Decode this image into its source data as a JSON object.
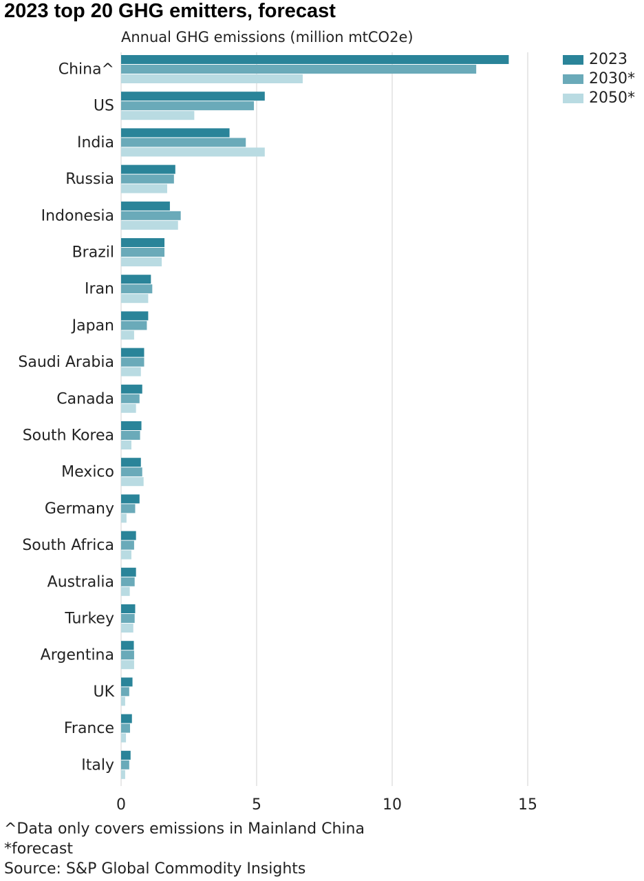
{
  "title": "2023 top 20 GHG emitters, forecast",
  "subtitle": "Annual GHG emissions (million mtCO2e)",
  "footnotes": {
    "china_note": "^Data only covers emissions in Mainland China",
    "forecast_note": "*forecast",
    "source": "Source: S&P Global Commodity Insights"
  },
  "colors": {
    "s2023": "#2a8499",
    "s2030": "#6aaab9",
    "s2050": "#b9dbe2",
    "grid": "#d9d9d9"
  },
  "chart_data": {
    "type": "bar",
    "orientation": "horizontal",
    "title": "2023 top 20 GHG emitters, forecast",
    "subtitle": "Annual GHG emissions (million mtCO2e)",
    "categories": [
      "China^",
      "US",
      "India",
      "Russia",
      "Indonesia",
      "Brazil",
      "Iran",
      "Japan",
      "Saudi Arabia",
      "Canada",
      "South Korea",
      "Mexico",
      "Germany",
      "South Africa",
      "Australia",
      "Turkey",
      "Argentina",
      "UK",
      "France",
      "Italy"
    ],
    "series": [
      {
        "name": "2023",
        "values": [
          14.3,
          5.3,
          4.0,
          2.0,
          1.8,
          1.6,
          1.1,
          1.0,
          0.85,
          0.78,
          0.75,
          0.73,
          0.68,
          0.55,
          0.55,
          0.52,
          0.47,
          0.42,
          0.4,
          0.35
        ]
      },
      {
        "name": "2030*",
        "values": [
          13.1,
          4.9,
          4.6,
          1.95,
          2.2,
          1.6,
          1.15,
          0.95,
          0.85,
          0.68,
          0.7,
          0.78,
          0.52,
          0.48,
          0.5,
          0.5,
          0.48,
          0.3,
          0.33,
          0.3
        ]
      },
      {
        "name": "2050*",
        "values": [
          6.7,
          2.7,
          5.3,
          1.7,
          2.1,
          1.5,
          1.0,
          0.48,
          0.73,
          0.55,
          0.38,
          0.83,
          0.2,
          0.38,
          0.32,
          0.45,
          0.48,
          0.15,
          0.18,
          0.15
        ]
      }
    ],
    "xlim": [
      0,
      19
    ],
    "xticks": [
      0,
      5,
      10,
      15
    ],
    "grid": "vertical",
    "legend": "top-right"
  }
}
